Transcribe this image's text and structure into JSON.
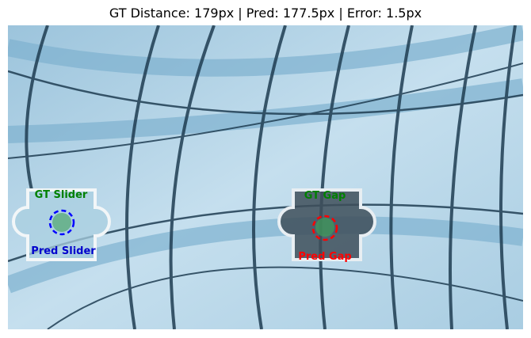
{
  "title": "GT Distance: 179px | Pred: 177.5px | Error: 1.5px",
  "annotations": {
    "gt_slider": "GT Slider",
    "pred_slider": "Pred Slider",
    "gt_gap": "GT Gap",
    "pred_gap": "Pred Gap"
  }
}
